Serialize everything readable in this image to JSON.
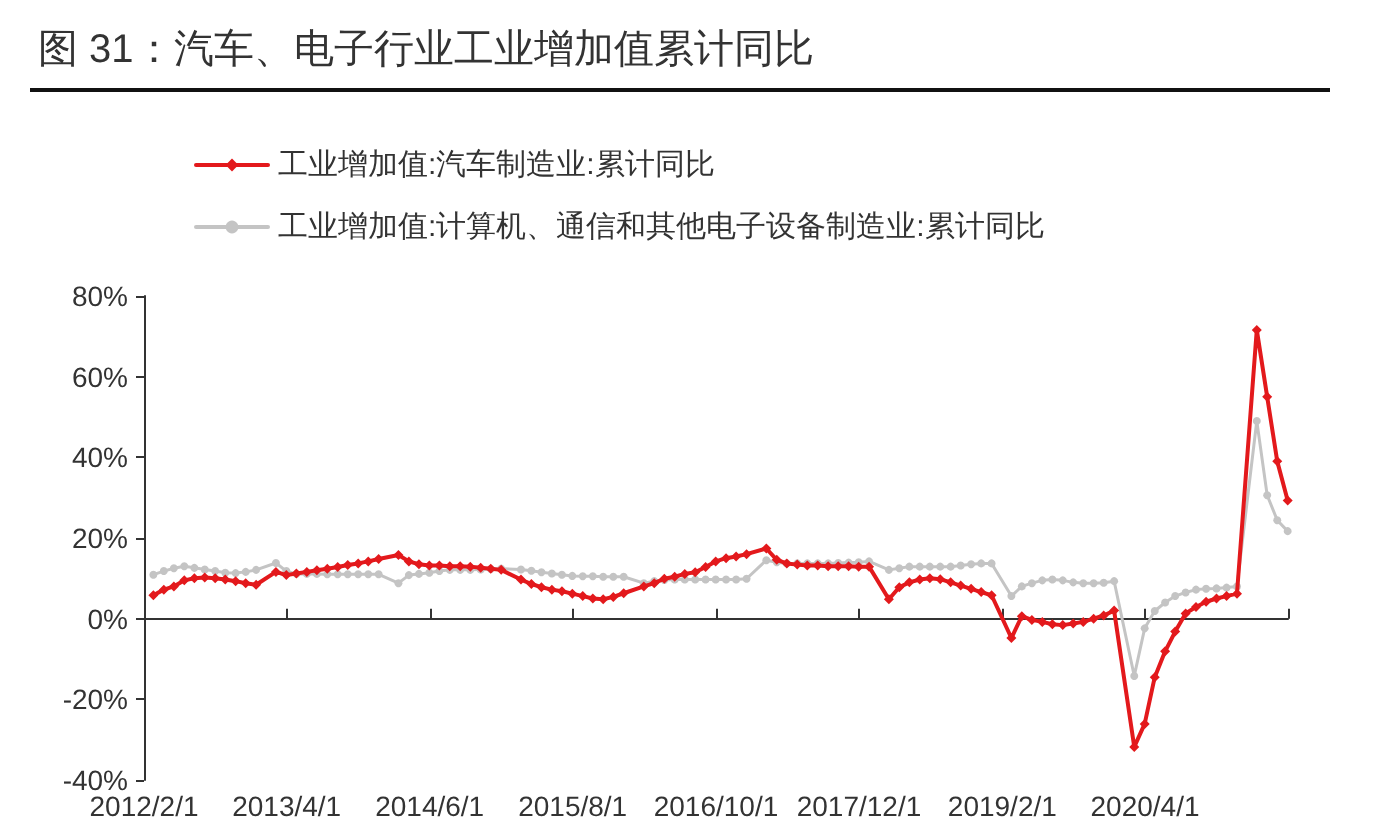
{
  "chart_data": {
    "type": "line",
    "title": "图 31：汽车、电子行业工业增加值累计同比",
    "x": [
      "2012-02-29",
      "2012-03-31",
      "2012-04-30",
      "2012-05-31",
      "2012-06-30",
      "2012-07-31",
      "2012-08-31",
      "2012-09-30",
      "2012-10-31",
      "2012-11-30",
      "2012-12-31",
      "2013-02-28",
      "2013-03-31",
      "2013-04-30",
      "2013-05-31",
      "2013-06-30",
      "2013-07-31",
      "2013-08-31",
      "2013-09-30",
      "2013-10-31",
      "2013-11-30",
      "2013-12-31",
      "2014-02-28",
      "2014-03-31",
      "2014-04-30",
      "2014-05-31",
      "2014-06-30",
      "2014-07-31",
      "2014-08-31",
      "2014-09-30",
      "2014-10-31",
      "2014-11-30",
      "2014-12-31",
      "2015-02-28",
      "2015-03-31",
      "2015-04-30",
      "2015-05-31",
      "2015-06-30",
      "2015-07-31",
      "2015-08-31",
      "2015-09-30",
      "2015-10-31",
      "2015-11-30",
      "2015-12-31",
      "2016-02-29",
      "2016-03-31",
      "2016-04-30",
      "2016-05-31",
      "2016-06-30",
      "2016-07-31",
      "2016-08-31",
      "2016-09-30",
      "2016-10-31",
      "2016-11-30",
      "2016-12-31",
      "2017-02-28",
      "2017-03-31",
      "2017-04-30",
      "2017-05-31",
      "2017-06-30",
      "2017-07-31",
      "2017-08-31",
      "2017-09-30",
      "2017-10-31",
      "2017-11-30",
      "2017-12-31",
      "2018-02-28",
      "2018-03-31",
      "2018-04-30",
      "2018-05-31",
      "2018-06-30",
      "2018-07-31",
      "2018-08-31",
      "2018-09-30",
      "2018-10-31",
      "2018-11-30",
      "2018-12-31",
      "2019-02-28",
      "2019-03-31",
      "2019-04-30",
      "2019-05-31",
      "2019-06-30",
      "2019-07-31",
      "2019-08-31",
      "2019-09-30",
      "2019-10-31",
      "2019-11-30",
      "2019-12-31",
      "2020-02-29",
      "2020-03-31",
      "2020-04-30",
      "2020-05-31",
      "2020-06-30",
      "2020-07-31",
      "2020-08-31",
      "2020-09-30",
      "2020-10-31",
      "2020-11-30",
      "2020-12-31",
      "2021-02-28",
      "2021-03-31",
      "2021-04-30",
      "2021-05-31"
    ],
    "series": [
      {
        "name": "工业增加值:汽车制造业:累计同比",
        "color": "#e3191c",
        "marker": "diamond",
        "values": [
          5.8,
          7.2,
          8.0,
          9.5,
          10.0,
          10.2,
          10.0,
          9.7,
          9.3,
          8.8,
          8.4,
          11.6,
          10.8,
          11.2,
          11.6,
          12.0,
          12.4,
          12.8,
          13.3,
          13.7,
          14.2,
          14.8,
          15.8,
          14.2,
          13.5,
          13.2,
          13.2,
          13.0,
          13.0,
          12.9,
          12.6,
          12.4,
          12.1,
          9.7,
          8.6,
          7.8,
          7.2,
          6.8,
          6.2,
          5.6,
          5.0,
          4.8,
          5.4,
          6.3,
          8.0,
          8.8,
          9.9,
          10.4,
          11.1,
          11.5,
          12.8,
          14.2,
          15.0,
          15.4,
          16.0,
          17.4,
          14.6,
          13.7,
          13.4,
          13.2,
          13.2,
          13.0,
          13.0,
          13.0,
          12.9,
          12.9,
          4.8,
          7.8,
          9.0,
          9.7,
          10.0,
          9.8,
          9.0,
          8.2,
          7.4,
          6.6,
          5.8,
          -4.8,
          0.6,
          -0.3,
          -0.8,
          -1.4,
          -1.6,
          -1.2,
          -0.8,
          0.0,
          0.8,
          2.0,
          -31.8,
          -26.1,
          -14.5,
          -8.1,
          -3.2,
          1.3,
          2.9,
          4.2,
          5.0,
          5.6,
          6.2,
          71.6,
          55.0,
          39.0,
          29.3
        ]
      },
      {
        "name": "工业增加值:计算机、通信和其他电子设备制造业:累计同比",
        "color": "#c4c4c4",
        "marker": "circle",
        "values": [
          10.9,
          11.8,
          12.5,
          13.0,
          12.6,
          12.2,
          11.8,
          11.4,
          11.3,
          11.6,
          12.1,
          13.8,
          11.8,
          11.1,
          11.1,
          11.1,
          11.0,
          11.0,
          11.0,
          11.0,
          11.0,
          11.0,
          8.8,
          10.8,
          11.1,
          11.4,
          11.8,
          12.1,
          12.1,
          12.1,
          12.2,
          12.3,
          12.4,
          12.2,
          11.9,
          11.5,
          11.2,
          10.9,
          10.6,
          10.5,
          10.5,
          10.4,
          10.4,
          10.4,
          8.8,
          9.3,
          9.6,
          9.7,
          9.7,
          9.7,
          9.7,
          9.7,
          9.7,
          9.7,
          9.9,
          14.5,
          14.0,
          13.7,
          13.7,
          13.7,
          13.7,
          13.7,
          13.8,
          13.9,
          14.0,
          14.2,
          12.1,
          12.5,
          12.9,
          12.9,
          12.9,
          12.9,
          12.9,
          13.2,
          13.5,
          13.7,
          13.7,
          5.6,
          8.0,
          8.8,
          9.5,
          9.7,
          9.5,
          9.0,
          8.8,
          8.8,
          8.9,
          9.3,
          -14.2,
          -2.4,
          1.9,
          4.0,
          5.6,
          6.5,
          7.2,
          7.4,
          7.5,
          7.7,
          8.0,
          49.0,
          30.6,
          24.4,
          21.7
        ]
      }
    ],
    "xlim": [
      "2012-02-01",
      "2021-06-01"
    ],
    "xticks": [
      {
        "value": "2012-02-01",
        "label": "2012/2/1"
      },
      {
        "value": "2013-04-01",
        "label": "2013/4/1"
      },
      {
        "value": "2014-06-01",
        "label": "2014/6/1"
      },
      {
        "value": "2015-08-01",
        "label": "2015/8/1"
      },
      {
        "value": "2016-10-01",
        "label": "2016/10/1"
      },
      {
        "value": "2017-12-01",
        "label": "2017/12/1"
      },
      {
        "value": "2019-02-01",
        "label": "2019/2/1"
      },
      {
        "value": "2020-04-01",
        "label": "2020/4/1"
      },
      {
        "value": "2021-06-01",
        "label": null
      }
    ],
    "ylim": [
      -40,
      80
    ],
    "yticks": [
      {
        "value": -40,
        "label": "-40%"
      },
      {
        "value": -20,
        "label": "-20%"
      },
      {
        "value": 0,
        "label": "0%"
      },
      {
        "value": 20,
        "label": "20%"
      },
      {
        "value": 40,
        "label": "40%"
      },
      {
        "value": 60,
        "label": "60%"
      },
      {
        "value": 80,
        "label": "80%"
      }
    ],
    "legend": "top"
  }
}
